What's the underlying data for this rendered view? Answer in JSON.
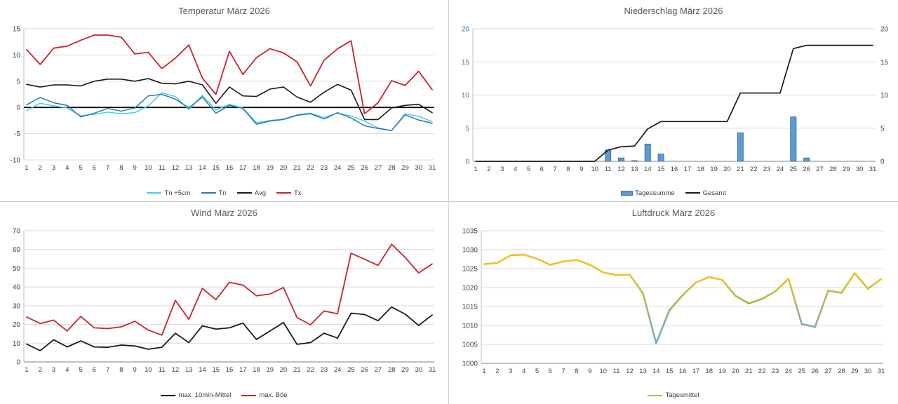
{
  "chart_data": [
    {
      "id": "temperatur",
      "type": "line",
      "title": "Temperatur März 2026",
      "categories": [
        1,
        2,
        3,
        4,
        5,
        6,
        7,
        8,
        9,
        10,
        11,
        12,
        13,
        14,
        15,
        16,
        17,
        18,
        19,
        20,
        21,
        22,
        23,
        24,
        25,
        26,
        27,
        28,
        29,
        30,
        31
      ],
      "ylim": [
        -10,
        15
      ],
      "ytick_step": 5,
      "ytick_labels": [
        "15",
        "10",
        "5",
        "0",
        "-5",
        "-10"
      ],
      "zero_line": true,
      "grid": true,
      "legend_position": "bottom",
      "series": [
        {
          "name": "Tn +5cm",
          "type": "line",
          "color": "#3fd2e8",
          "width": 1.5,
          "values": [
            -0.6,
            0.8,
            0.3,
            -0.1,
            -1.6,
            -1.3,
            -0.9,
            -1.2,
            -1.0,
            0.3,
            2.8,
            2.1,
            -0.4,
            2.3,
            -0.5,
            0.6,
            -0.1,
            -2.9,
            -2.5,
            -2.2,
            -1.4,
            -1.1,
            -1.9,
            -1.1,
            -1.6,
            -2.6,
            -3.9,
            -4.4,
            -1.2,
            -1.7,
            -2.7
          ]
        },
        {
          "name": "Tn",
          "type": "line",
          "color": "#2e77b0",
          "width": 1.5,
          "values": [
            0.5,
            1.9,
            0.9,
            0.4,
            -1.8,
            -1.1,
            -0.2,
            -0.7,
            -0.1,
            2.2,
            2.5,
            1.6,
            -0.1,
            2.0,
            -1.1,
            0.4,
            -0.2,
            -3.2,
            -2.6,
            -2.3,
            -1.5,
            -1.2,
            -2.2,
            -1.0,
            -2.0,
            -3.5,
            -4.0,
            -4.4,
            -1.4,
            -2.4,
            -3.0
          ]
        },
        {
          "name": "Avg",
          "type": "line",
          "color": "#1a1a1a",
          "width": 1.6,
          "values": [
            4.4,
            3.9,
            4.3,
            4.3,
            4.1,
            5.0,
            5.4,
            5.4,
            5.0,
            5.5,
            4.6,
            4.5,
            5.0,
            4.3,
            0.8,
            3.9,
            2.2,
            2.1,
            3.5,
            3.9,
            2.0,
            1.0,
            2.9,
            4.4,
            3.3,
            -2.3,
            -2.3,
            -0.1,
            0.4,
            0.6,
            -1.0
          ]
        },
        {
          "name": "Tx",
          "type": "line",
          "color": "#c8232c",
          "width": 1.8,
          "values": [
            11.0,
            8.2,
            11.3,
            11.7,
            12.8,
            13.8,
            13.8,
            13.4,
            10.2,
            10.5,
            7.4,
            9.4,
            11.9,
            5.6,
            2.5,
            10.7,
            6.3,
            9.5,
            11.2,
            10.4,
            8.7,
            4.1,
            9.0,
            11.2,
            12.7,
            -1.2,
            0.9,
            5.1,
            4.2,
            6.9,
            3.4
          ]
        }
      ]
    },
    {
      "id": "niederschlag",
      "type": "bar",
      "title": "Niederschlag März 2026",
      "categories": [
        1,
        2,
        3,
        4,
        5,
        6,
        7,
        8,
        9,
        10,
        11,
        12,
        13,
        14,
        15,
        16,
        17,
        18,
        19,
        20,
        21,
        22,
        23,
        24,
        25,
        26,
        27,
        28,
        29,
        30,
        31
      ],
      "ylim": [
        0,
        20
      ],
      "ytick_step": 5,
      "ytick_labels": [
        "20",
        "15",
        "10",
        "5",
        "0"
      ],
      "right_axis": true,
      "left_tick_color": "#2e74b5",
      "grid": true,
      "legend_position": "bottom",
      "series": [
        {
          "name": "Tagessumme",
          "type": "bar",
          "color": "#5b9bd5",
          "border": "#41719c",
          "values": [
            0,
            0,
            0,
            0,
            0,
            0,
            0,
            0,
            0,
            0,
            1.7,
            0.5,
            0.1,
            2.6,
            1.1,
            0,
            0,
            0,
            0,
            0,
            4.3,
            0,
            0,
            0,
            6.7,
            0.5,
            0,
            0,
            0,
            0,
            0
          ]
        },
        {
          "name": "Gesamt",
          "type": "line",
          "color": "#1a1a1a",
          "width": 1.7,
          "values": [
            0,
            0,
            0,
            0,
            0,
            0,
            0,
            0,
            0,
            0,
            1.7,
            2.2,
            2.3,
            4.9,
            6.0,
            6.0,
            6.0,
            6.0,
            6.0,
            6.0,
            10.3,
            10.3,
            10.3,
            10.3,
            17.0,
            17.5,
            17.5,
            17.5,
            17.5,
            17.5,
            17.5
          ]
        }
      ]
    },
    {
      "id": "wind",
      "type": "line",
      "title": "Wind März 2026",
      "categories": [
        1,
        2,
        3,
        4,
        5,
        6,
        7,
        8,
        9,
        10,
        11,
        12,
        13,
        14,
        15,
        16,
        17,
        18,
        19,
        20,
        21,
        22,
        23,
        24,
        25,
        26,
        27,
        28,
        29,
        30,
        31
      ],
      "ylim": [
        0,
        70
      ],
      "ytick_step": 10,
      "ytick_labels": [
        "70",
        "60",
        "50",
        "40",
        "30",
        "20",
        "10",
        "0"
      ],
      "grid": true,
      "legend_position": "bottom",
      "series": [
        {
          "name": "max. 10min-Mittel",
          "type": "line",
          "color": "#1a1a1a",
          "width": 1.8,
          "values": [
            9.5,
            6.0,
            11.8,
            8.0,
            11.2,
            8.0,
            7.8,
            9.0,
            8.5,
            6.8,
            7.8,
            15.3,
            10.3,
            19.3,
            17.5,
            18.2,
            20.7,
            12.0,
            16.5,
            21.0,
            9.4,
            10.3,
            15.3,
            12.7,
            26.0,
            25.3,
            22.0,
            29.3,
            25.5,
            19.5,
            25.0
          ]
        },
        {
          "name": "max. Böe",
          "type": "line",
          "color": "#c8232c",
          "width": 1.8,
          "values": [
            24.0,
            20.5,
            22.3,
            16.5,
            24.3,
            18.2,
            17.8,
            18.7,
            21.7,
            17.0,
            14.3,
            32.8,
            22.8,
            39.3,
            33.2,
            42.5,
            41.0,
            35.3,
            36.2,
            39.7,
            23.7,
            19.8,
            27.2,
            25.7,
            58.0,
            54.8,
            51.5,
            62.8,
            55.8,
            47.5,
            52.3
          ]
        }
      ]
    },
    {
      "id": "luftdruck",
      "type": "line",
      "title": "Luftdruck März 2026",
      "categories": [
        1,
        2,
        3,
        4,
        5,
        6,
        7,
        8,
        9,
        10,
        11,
        12,
        13,
        14,
        15,
        16,
        17,
        18,
        19,
        20,
        21,
        22,
        23,
        24,
        25,
        26,
        27,
        28,
        29,
        30,
        31
      ],
      "ylim": [
        1000,
        1035
      ],
      "ytick_step": 5,
      "ytick_labels": [
        "1035",
        "1030",
        "1025",
        "1020",
        "1015",
        "1010",
        "1005",
        "1000"
      ],
      "grid": true,
      "legend_position": "bottom",
      "series": [
        {
          "name": "Tagesmittel",
          "type": "line",
          "color": "#adc04a",
          "legend_color": "#adc04a",
          "width": 2.6,
          "gradient_stops": [
            [
              1005.5,
              "#74aadc"
            ],
            [
              1015.5,
              "#8ab94a"
            ],
            [
              1022.0,
              "#f2c026"
            ]
          ],
          "values": [
            1026.2,
            1026.5,
            1028.5,
            1028.7,
            1027.6,
            1026.0,
            1026.9,
            1027.3,
            1026.0,
            1024.0,
            1023.3,
            1023.4,
            1018.5,
            1005.3,
            1014.0,
            1018.0,
            1021.3,
            1022.8,
            1022.0,
            1017.8,
            1015.8,
            1017.0,
            1019.0,
            1022.3,
            1010.4,
            1009.6,
            1019.2,
            1018.6,
            1023.8,
            1019.7,
            1022.3
          ]
        }
      ]
    }
  ]
}
